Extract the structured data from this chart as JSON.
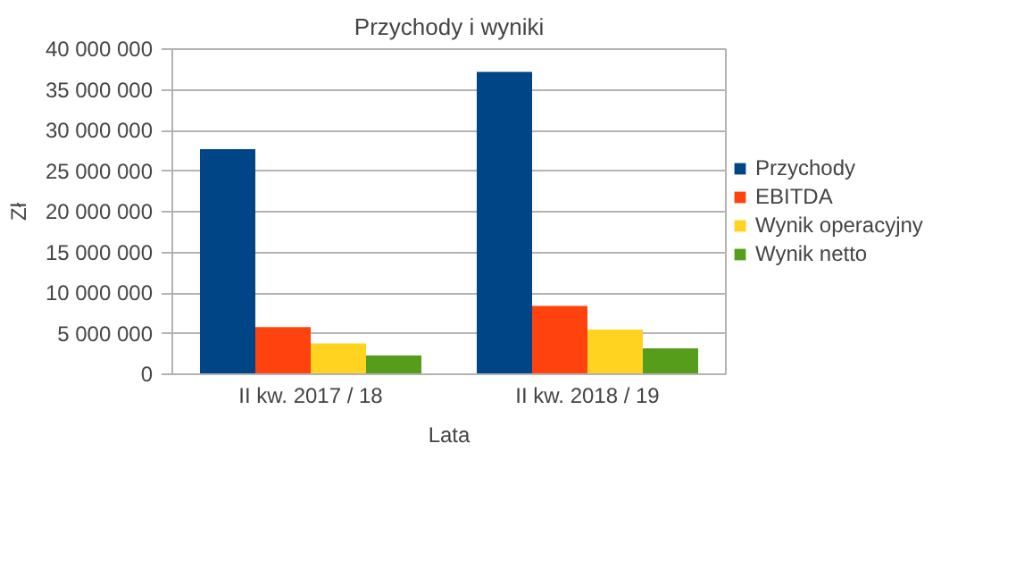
{
  "chart_data": {
    "type": "bar",
    "title": "Przychody i wyniki",
    "xlabel": "Lata",
    "ylabel": "Zł",
    "categories": [
      "II kw. 2017 / 18",
      "II kw. 2018 / 19"
    ],
    "series": [
      {
        "name": "Przychody",
        "color": "#004586",
        "values": [
          27700000,
          37200000
        ]
      },
      {
        "name": "EBITDA",
        "color": "#ff420e",
        "values": [
          5800000,
          8400000
        ]
      },
      {
        "name": "Wynik operacyjny",
        "color": "#ffd320",
        "values": [
          3800000,
          5500000
        ]
      },
      {
        "name": "Wynik netto",
        "color": "#579d1c",
        "values": [
          2300000,
          3200000
        ]
      }
    ],
    "ylim": [
      0,
      40000000
    ],
    "yticks": [
      {
        "value": 0,
        "label": "0"
      },
      {
        "value": 5000000,
        "label": "5 000 000"
      },
      {
        "value": 10000000,
        "label": "10 000 000"
      },
      {
        "value": 15000000,
        "label": "15 000 000"
      },
      {
        "value": 20000000,
        "label": "20 000 000"
      },
      {
        "value": 25000000,
        "label": "25 000 000"
      },
      {
        "value": 30000000,
        "label": "30 000 000"
      },
      {
        "value": 35000000,
        "label": "35 000 000"
      },
      {
        "value": 40000000,
        "label": "40 000 000"
      }
    ],
    "grid": "y",
    "legend": "right"
  }
}
